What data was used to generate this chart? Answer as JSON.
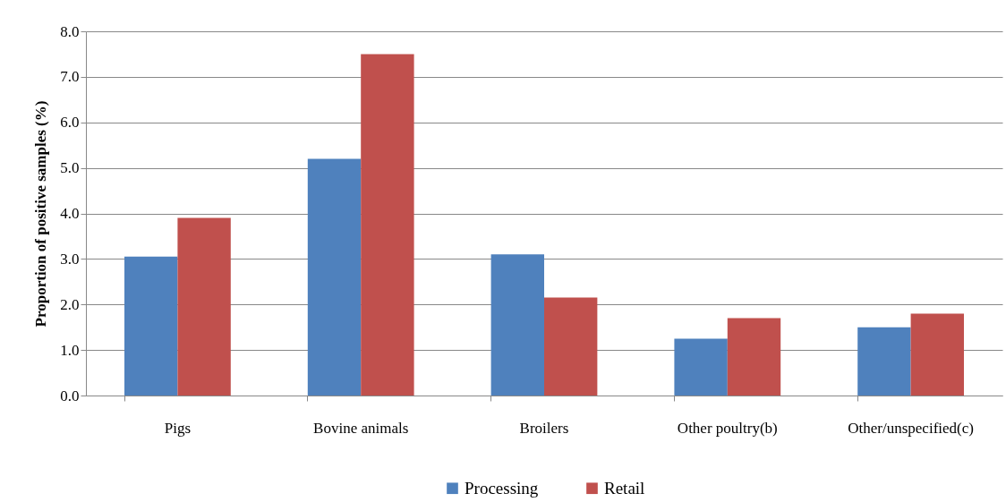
{
  "chart_data": {
    "type": "bar",
    "ylabel": "Proportion of positive samples (%)",
    "categories": [
      "Pigs",
      "Bovine animals",
      "Broilers",
      "Other poultry(b)",
      "Other/unspecified(c)"
    ],
    "series": [
      {
        "name": "Processing",
        "color": "#4f81bd",
        "values": [
          3.05,
          5.2,
          3.1,
          1.25,
          1.5
        ]
      },
      {
        "name": "Retail",
        "color": "#c0504d",
        "values": [
          3.9,
          7.5,
          2.15,
          1.7,
          1.8
        ]
      }
    ],
    "ylim": [
      0,
      8
    ],
    "yticks": [
      {
        "value": 0,
        "label": "0.0"
      },
      {
        "value": 1,
        "label": "1.0"
      },
      {
        "value": 2,
        "label": "2.0"
      },
      {
        "value": 3,
        "label": "3.0"
      },
      {
        "value": 4,
        "label": "4.0"
      },
      {
        "value": 5,
        "label": "5.0"
      },
      {
        "value": 6,
        "label": "6.0"
      },
      {
        "value": 7,
        "label": "7.0"
      },
      {
        "value": 8,
        "label": "8.0"
      }
    ],
    "grid": "y",
    "legend": "bottom"
  }
}
